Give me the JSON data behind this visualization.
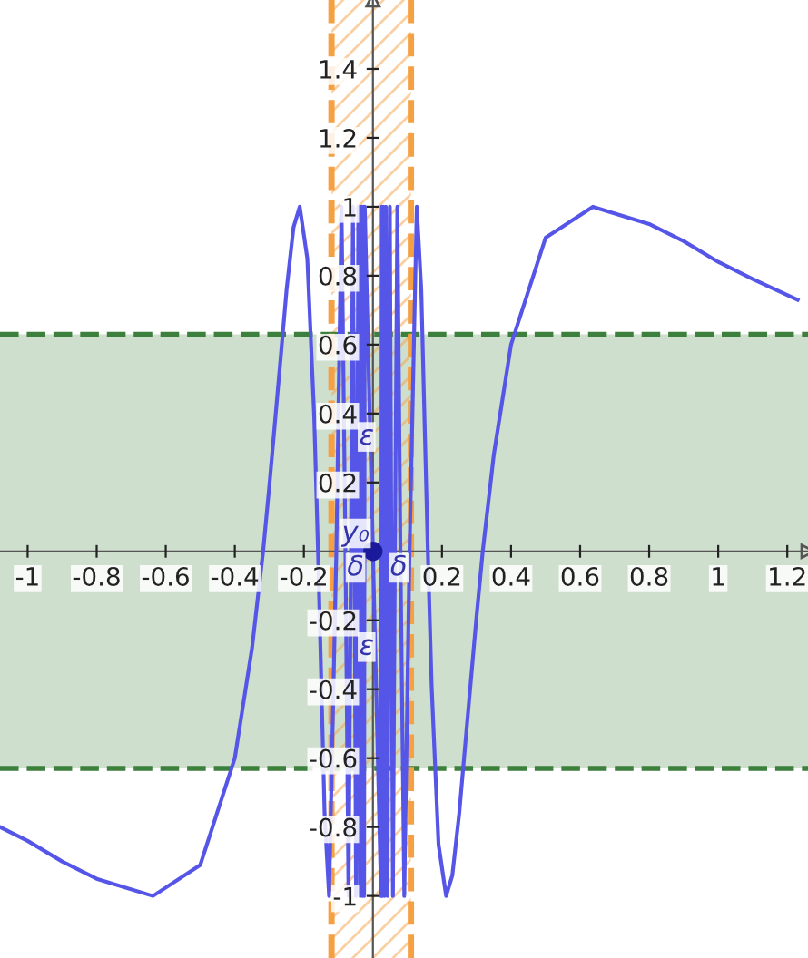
{
  "chart_data": {
    "type": "line",
    "xlim": [
      -1.08,
      1.26
    ],
    "ylim": [
      -1.18,
      1.6
    ],
    "xticks": [
      -1,
      -0.8,
      -0.6,
      -0.4,
      -0.2,
      0.2,
      0.4,
      0.6,
      0.8,
      1,
      1.2
    ],
    "yticks": [
      -1,
      -0.8,
      -0.6,
      -0.4,
      -0.2,
      0.2,
      0.4,
      0.6,
      0.8,
      1,
      1.2,
      1.4
    ],
    "grid": false,
    "legend": false,
    "marker": "none",
    "line_style": "solid",
    "bands": [
      {
        "axis": "y",
        "from": -0.63,
        "to": 0.63,
        "color": "#3d7f3d"
      },
      {
        "axis": "x",
        "from": -0.12,
        "to": 0.11,
        "color": "#f5a043"
      }
    ],
    "ref_lines": [
      {
        "axis": "y",
        "value": 0.63,
        "color": "#3d7f3d",
        "line_style": "dashed"
      },
      {
        "axis": "y",
        "value": -0.63,
        "color": "#3d7f3d",
        "line_style": "dashed"
      },
      {
        "axis": "x",
        "value": -0.12,
        "color": "#f5a043",
        "line_style": "dashed"
      },
      {
        "axis": "x",
        "value": 0.11,
        "color": "#f5a043",
        "line_style": "dashed"
      }
    ],
    "series": [
      {
        "color": "#5555e8",
        "x": [
          -1.08,
          -1.0,
          -0.9,
          -0.8,
          -0.637,
          -0.5,
          -0.4,
          -0.35,
          -0.318,
          -0.3,
          -0.27,
          -0.25,
          -0.23,
          -0.212,
          -0.19,
          -0.17,
          -0.159,
          -0.14,
          -0.127,
          -0.106,
          -0.0909,
          -0.0796,
          -0.0707,
          -0.0637,
          -0.0579,
          -0.049,
          -0.0424,
          -0.0374,
          -0.0335,
          -0.0303,
          -0.0277,
          -0.0255,
          -0.0236,
          0.0236,
          0.0255,
          0.0277,
          0.0303,
          0.0335,
          0.0374,
          0.0424,
          0.049,
          0.0579,
          0.0637,
          0.0707,
          0.0796,
          0.0909,
          0.106,
          0.127,
          0.14,
          0.159,
          0.17,
          0.19,
          0.212,
          0.23,
          0.25,
          0.27,
          0.3,
          0.318,
          0.35,
          0.4,
          0.5,
          0.637,
          0.8,
          0.9,
          1.0,
          1.1,
          1.23
        ],
        "values": [
          -0.8,
          -0.84,
          -0.9,
          -0.95,
          -1,
          -0.91,
          -0.6,
          -0.28,
          0,
          0.19,
          0.53,
          0.76,
          0.94,
          1,
          0.85,
          0.39,
          0,
          -0.76,
          -1,
          0,
          1,
          0,
          -1,
          0,
          1,
          -1,
          1,
          -1,
          1,
          -1,
          1,
          -1,
          1,
          -1,
          1,
          -1,
          1,
          -1,
          1,
          -1,
          1,
          -1,
          0,
          1,
          0,
          -1,
          0,
          1,
          0.76,
          0,
          -0.39,
          -0.85,
          -1,
          -0.94,
          -0.76,
          -0.53,
          -0.19,
          0,
          0.28,
          0.6,
          0.91,
          1,
          0.95,
          0.9,
          0.84,
          0.79,
          0.73
        ]
      },
      {
        "type": "scatter",
        "color": "#1a1a9a",
        "marker": "circle",
        "x": [
          0
        ],
        "values": [
          0
        ]
      }
    ],
    "annotations": [
      {
        "text": "y₀",
        "x": -0.09,
        "y": 0.03
      },
      {
        "text": "ε",
        "x": -0.04,
        "y": 0.31
      },
      {
        "text": "ε",
        "x": -0.04,
        "y": -0.3
      },
      {
        "text": "δ",
        "x": -0.075,
        "y": -0.07
      },
      {
        "text": "δ",
        "x": 0.05,
        "y": -0.07
      }
    ]
  }
}
